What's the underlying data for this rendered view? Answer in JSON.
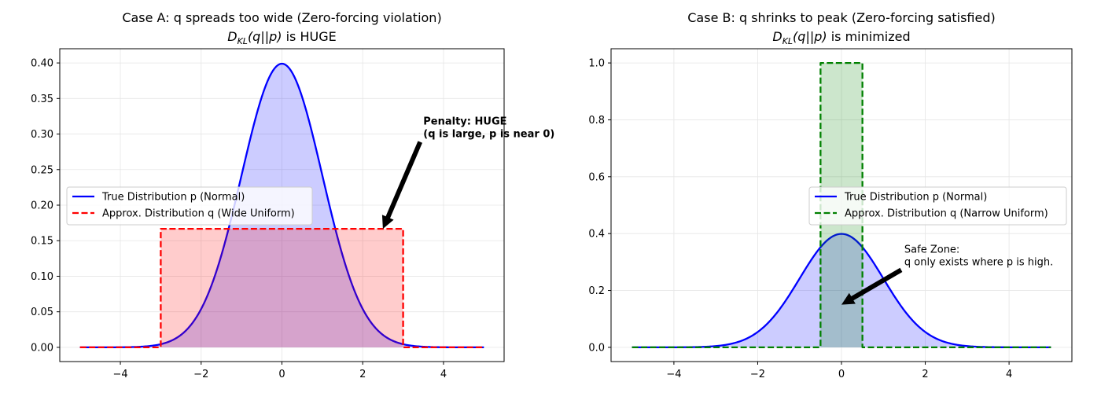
{
  "chart_data": [
    {
      "type": "line",
      "title": "Case A: q spreads too wide (Zero-forcing violation)",
      "subtitle": {
        "pre": "D",
        "sub": "KL",
        "post": "(q||p)",
        "suffix": " is HUGE"
      },
      "xlim": [
        -5.5,
        5.5
      ],
      "ylim": [
        -0.02,
        0.42
      ],
      "xticks": [
        -4,
        -2,
        0,
        2,
        4
      ],
      "xtick_labels": [
        "−4",
        "−2",
        "0",
        "2",
        "4"
      ],
      "yticks": [
        0.0,
        0.05,
        0.1,
        0.15,
        0.2,
        0.25,
        0.3,
        0.35,
        0.4
      ],
      "ytick_labels": [
        "0.00",
        "0.05",
        "0.10",
        "0.15",
        "0.20",
        "0.25",
        "0.30",
        "0.35",
        "0.40"
      ],
      "grid": true,
      "legend_position": "center-left",
      "series": [
        {
          "name": "True Distribution p (Normal)",
          "kind": "normal",
          "mu": 0,
          "sigma": 1,
          "x_range": [
            -5,
            5
          ],
          "color": "#0000ff",
          "dash": "solid",
          "fill": "#0000ff"
        },
        {
          "name": "Approx. Distribution q (Wide Uniform)",
          "kind": "uniform",
          "a": -3,
          "b": 3,
          "height": 0.1667,
          "x_range": [
            -5,
            5
          ],
          "color": "#ff0000",
          "dash": "dashed",
          "fill": "#ff0000"
        }
      ],
      "annotation": {
        "lines": [
          "Penalty: HUGE",
          "(q is large, p is near 0)"
        ],
        "bold": true,
        "text_at": [
          3.5,
          0.3
        ],
        "arrow_tip": [
          2.5,
          0.1667
        ]
      }
    },
    {
      "type": "line",
      "title": "Case B: q shrinks to peak (Zero-forcing satisfied)",
      "subtitle": {
        "pre": "D",
        "sub": "KL",
        "post": "(q||p)",
        "suffix": " is minimized"
      },
      "xlim": [
        -5.5,
        5.5
      ],
      "ylim": [
        -0.05,
        1.05
      ],
      "xticks": [
        -4,
        -2,
        0,
        2,
        4
      ],
      "xtick_labels": [
        "−4",
        "−2",
        "0",
        "2",
        "4"
      ],
      "yticks": [
        0.0,
        0.2,
        0.4,
        0.6,
        0.8,
        1.0
      ],
      "ytick_labels": [
        "0.0",
        "0.2",
        "0.4",
        "0.6",
        "0.8",
        "1.0"
      ],
      "grid": true,
      "legend_position": "center-right",
      "series": [
        {
          "name": "True Distribution p (Normal)",
          "kind": "normal",
          "mu": 0,
          "sigma": 1,
          "x_range": [
            -5,
            5
          ],
          "color": "#0000ff",
          "dash": "solid",
          "fill": "#0000ff"
        },
        {
          "name": "Approx. Distribution q (Narrow Uniform)",
          "kind": "uniform",
          "a": -0.5,
          "b": 0.5,
          "height": 1.0,
          "x_range": [
            -5,
            5
          ],
          "color": "#008000",
          "dash": "dashed",
          "fill": "#008000"
        }
      ],
      "annotation": {
        "lines": [
          "Safe Zone:",
          "q only exists where p is high."
        ],
        "bold": false,
        "text_at": [
          1.5,
          0.3
        ],
        "arrow_tip": [
          0.0,
          0.15
        ]
      }
    }
  ]
}
